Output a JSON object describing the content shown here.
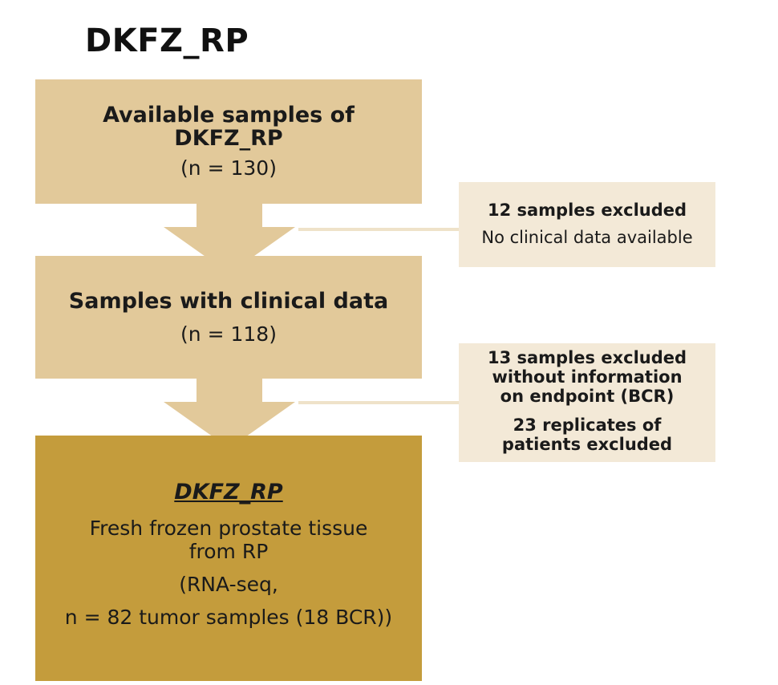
{
  "title": "DKFZ_RP",
  "boxes": {
    "available": {
      "line1": "Available samples of",
      "line2": "DKFZ_RP",
      "count": "(n = 130)"
    },
    "clinical": {
      "line1": "Samples with clinical data",
      "count": "(n = 118)"
    },
    "final": {
      "heading": "DKFZ_RP",
      "line1": "Fresh frozen prostate tissue",
      "line2": "from RP",
      "line3": "(RNA-seq,",
      "line4": "n = 82 tumor samples (18 BCR))"
    }
  },
  "exclusions": {
    "first": {
      "line1": "12 samples excluded",
      "line2": "No clinical data available"
    },
    "second": {
      "line1": "13 samples excluded",
      "line2": "without information",
      "line3": "on endpoint (BCR)",
      "line4": "23 replicates of",
      "line5": "patients excluded"
    }
  },
  "colors": {
    "box_light": "#e2c99a",
    "box_dark": "#c49c3c",
    "side_box": "#f3e9d7"
  }
}
